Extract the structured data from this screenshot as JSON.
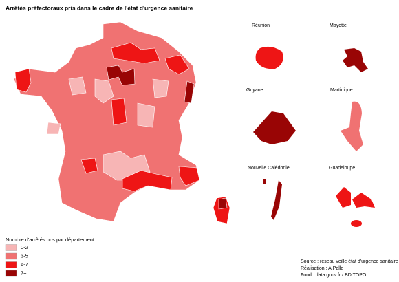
{
  "title": "Arrêtés préfectoraux pris dans le cadre de l'état d'urgence sanitaire",
  "regions": {
    "reunion": "Réunion",
    "mayotte": "Mayotte",
    "guyane": "Guyane",
    "martinique": "Martinique",
    "nouvelle_caledonie": "Nouvelle Calédonie",
    "guadeloupe": "Guadeloupe"
  },
  "legend": {
    "title": "Nombre d'arrêtés pris par département",
    "items": [
      {
        "label": "0-2",
        "color": "#f7b5b5"
      },
      {
        "label": "3-5",
        "color": "#f07272"
      },
      {
        "label": "6-7",
        "color": "#ee1515"
      },
      {
        "label": "7+",
        "color": "#990505"
      }
    ]
  },
  "credits": [
    "Source : réseau veille état d'urgence sanitaire",
    "Réalisation : A.Palle",
    "Fond : data.gouv.fr / BD TOPO"
  ]
}
